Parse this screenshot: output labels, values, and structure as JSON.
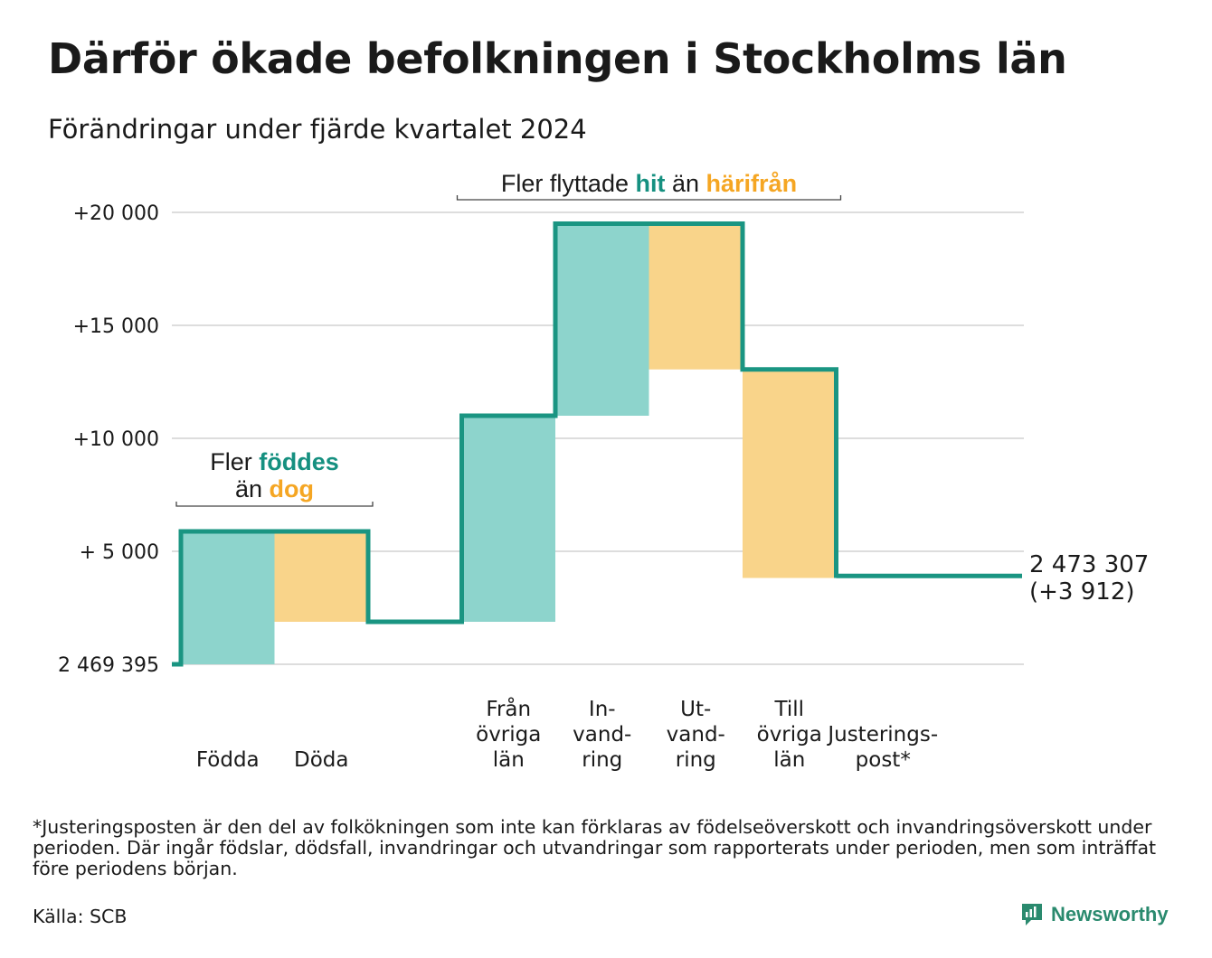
{
  "title": "Därför ökade befolkningen i Stockholms län",
  "subtitle": "Förändringar under fjärde kvartalet 2024",
  "chart_data": {
    "type": "waterfall",
    "base_label": "2 469 395",
    "y_ticks": [
      {
        "value": 0,
        "label": "2 469 395"
      },
      {
        "value": 5000,
        "label": "+ 5 000"
      },
      {
        "value": 10000,
        "label": "+10 000"
      },
      {
        "value": 15000,
        "label": "+15 000"
      },
      {
        "value": 20000,
        "label": "+20 000"
      }
    ],
    "ylim": [
      0,
      20000
    ],
    "grid": true,
    "steps": [
      {
        "label": [
          "Födda"
        ],
        "start": 0,
        "end": 5880,
        "kind": "increase"
      },
      {
        "label": [
          "Döda"
        ],
        "start": 5880,
        "end": 1880,
        "kind": "decrease"
      },
      {
        "label": [],
        "start": 1880,
        "end": 1880,
        "kind": "none"
      },
      {
        "label": [
          "Från",
          "övriga",
          "län"
        ],
        "start": 1880,
        "end": 11000,
        "kind": "increase"
      },
      {
        "label": [
          "In-",
          "vand-",
          "ring"
        ],
        "start": 11000,
        "end": 19500,
        "kind": "increase"
      },
      {
        "label": [
          "Ut-",
          "vand-",
          "ring"
        ],
        "start": 19500,
        "end": 13050,
        "kind": "decrease"
      },
      {
        "label": [
          "Till",
          "övriga",
          "län"
        ],
        "start": 13050,
        "end": 3820,
        "kind": "decrease"
      },
      {
        "label": [
          "Justerings-",
          "post*"
        ],
        "start": 3820,
        "end": 3912,
        "kind": "adjustment"
      }
    ],
    "total": {
      "label": "2 473 307",
      "change": "(+3 912)",
      "value": 3912
    },
    "annotations": [
      {
        "parts": [
          [
            "Fler ",
            "text"
          ],
          [
            "föddes",
            "teal"
          ]
        ],
        "line2": [
          [
            "än ",
            "text"
          ],
          [
            "dog",
            "orange"
          ]
        ],
        "span": [
          0,
          1
        ]
      },
      {
        "parts": [
          [
            "Fler flyttade ",
            "text"
          ],
          [
            "hit",
            "teal"
          ],
          [
            " än ",
            "text"
          ],
          [
            "härifrån",
            "orange"
          ]
        ],
        "span": [
          3,
          6
        ]
      }
    ],
    "colors": {
      "increase_fill": "#8dd4cc",
      "decrease_fill": "#f9d48a",
      "line": "#1a9582",
      "teal_text": "#159080",
      "orange_text": "#f5a623",
      "grid": "#dddddd"
    }
  },
  "footnote": "*Justeringsposten är den del av folkökningen som inte kan förklaras av födelseöverskott och invandringsöverskott under perioden. Där ingår födslar, dödsfall, invandringar och utvandringar som rapporterats under perioden, men som inträffat före periodens början.",
  "source": "Källa: SCB",
  "brand": {
    "name": "Newsworthy",
    "icon": "newsworthy-chart-icon"
  }
}
